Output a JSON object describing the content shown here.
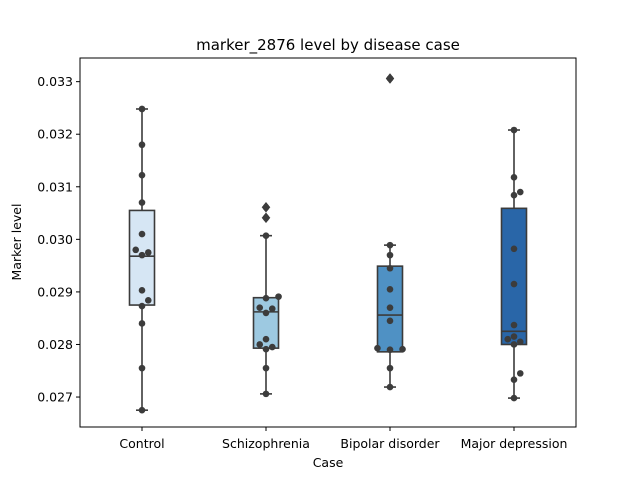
{
  "chart_data": {
    "type": "box",
    "title": "marker_2876 level by disease case",
    "xlabel": "Case",
    "ylabel": "Marker level",
    "ylim": [
      0.02643,
      0.03345
    ],
    "yticks": [
      "0.027",
      "0.028",
      "0.029",
      "0.030",
      "0.031",
      "0.032",
      "0.033"
    ],
    "yticks_values": [
      0.027,
      0.028,
      0.029,
      0.03,
      0.031,
      0.032,
      0.033
    ],
    "categories": [
      "Control",
      "Schizophrenia",
      "Bipolar disorder",
      "Major depression"
    ],
    "colors": {
      "Control": "#d6e6f4",
      "Schizophrenia": "#9dc9e1",
      "Bipolar disorder": "#4f91c4",
      "Major depression": "#2966a8"
    },
    "boxes": [
      {
        "category": "Control",
        "min": 0.02675,
        "q1": 0.02875,
        "median": 0.02968,
        "q3": 0.03055,
        "max": 0.03248,
        "outliers": []
      },
      {
        "category": "Schizophrenia",
        "min": 0.02706,
        "q1": 0.02793,
        "median": 0.02862,
        "q3": 0.02889,
        "max": 0.03007,
        "outliers": [
          0.03061,
          0.03041
        ]
      },
      {
        "category": "Bipolar disorder",
        "min": 0.02719,
        "q1": 0.02786,
        "median": 0.02856,
        "q3": 0.02949,
        "max": 0.02989,
        "outliers": [
          0.03306
        ]
      },
      {
        "category": "Major depression",
        "min": 0.02698,
        "q1": 0.028,
        "median": 0.02825,
        "q3": 0.03059,
        "max": 0.03208,
        "outliers": []
      }
    ],
    "points": [
      {
        "category": "Control",
        "values": [
          0.03248,
          0.0318,
          0.03122,
          0.0307,
          0.0301,
          0.0298,
          0.02975,
          0.0297,
          0.02903,
          0.02884,
          0.02873,
          0.0284,
          0.02755,
          0.02675
        ]
      },
      {
        "category": "Schizophrenia",
        "values": [
          0.03061,
          0.03041,
          0.03007,
          0.02891,
          0.02888,
          0.0287,
          0.02868,
          0.0286,
          0.0281,
          0.028,
          0.02795,
          0.02791,
          0.02755,
          0.02706
        ]
      },
      {
        "category": "Bipolar disorder",
        "values": [
          0.03306,
          0.02989,
          0.0297,
          0.02945,
          0.02905,
          0.0287,
          0.02845,
          0.02793,
          0.02791,
          0.0279,
          0.02755,
          0.02719
        ]
      },
      {
        "category": "Major depression",
        "values": [
          0.03208,
          0.03118,
          0.0309,
          0.03084,
          0.02982,
          0.02915,
          0.02837,
          0.02815,
          0.0281,
          0.02805,
          0.028,
          0.02745,
          0.02733,
          0.02698
        ]
      }
    ]
  }
}
